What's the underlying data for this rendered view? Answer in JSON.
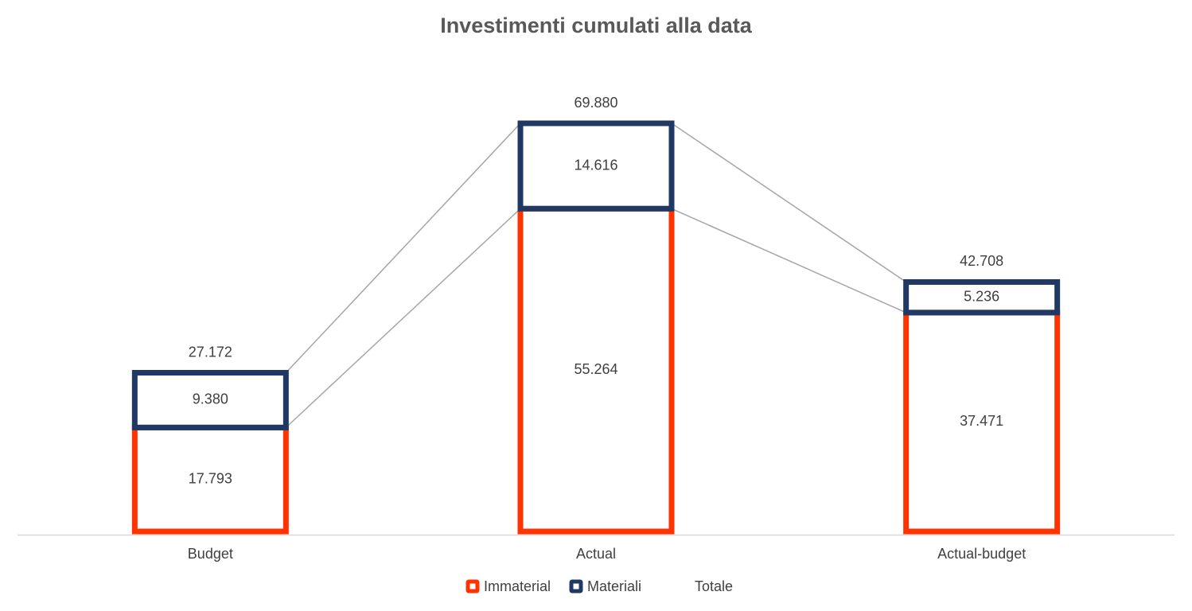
{
  "chart_data": {
    "type": "stacked-bar-outline",
    "title": "Investimenti cumulati alla data",
    "categories": [
      "Budget",
      "Actual",
      "Actual-budget"
    ],
    "series": [
      {
        "name": "Immaterial",
        "color": "#ff3300",
        "values": [
          17793,
          55264,
          37471
        ],
        "value_labels": [
          "17.793",
          "55.264",
          "37.471"
        ]
      },
      {
        "name": "Materiali",
        "color": "#1f3864",
        "values": [
          9380,
          14616,
          5236
        ],
        "value_labels": [
          "9.380",
          "14.616",
          "5.236"
        ]
      },
      {
        "name": "Totale",
        "values": [
          27172,
          69880,
          42708
        ],
        "value_labels": [
          "27.172",
          "69.880",
          "42.708"
        ]
      }
    ],
    "legend": "bottom"
  }
}
